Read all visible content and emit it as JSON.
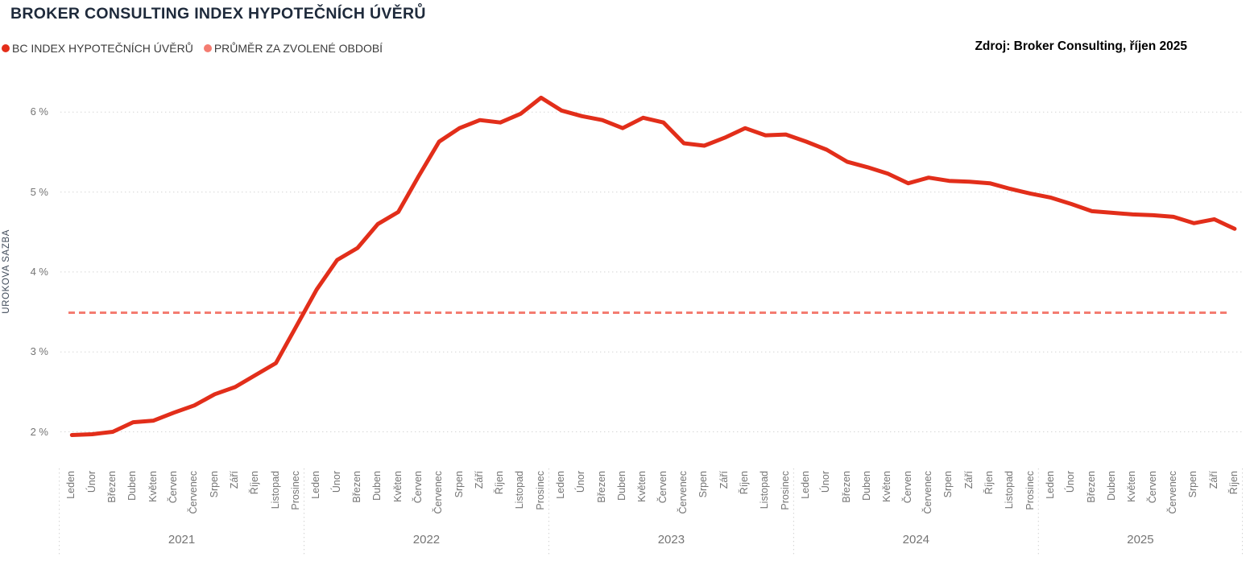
{
  "title": "BROKER CONSULTING INDEX HYPOTEČNÍCH ÚVĚRŮ",
  "source_note": "Zdroj: Broker Consulting, říjen 2025",
  "legend": [
    {
      "label": "BC INDEX HYPOTEČNÍCH ÚVĚRŮ",
      "color": "#e42e1a"
    },
    {
      "label": "PRŮMĚR ZA ZVOLENÉ OBDOBÍ",
      "color": "#f47c71"
    }
  ],
  "colors": {
    "series_line": "#e22e1a",
    "average_line": "#f47c71",
    "gridline": "#d4d4d4",
    "separator": "#cfcfcf",
    "axis_text": "#757575",
    "title_text": "#1e2a3b"
  },
  "chart_data": {
    "type": "line",
    "title": "BROKER CONSULTING INDEX HYPOTEČNÍCH ÚVĚRŮ",
    "ylabel": "UROKOVA SAZBA",
    "xlabel": "",
    "ylim": [
      1.6,
      6.4
    ],
    "grid": true,
    "legend_position": "top-left",
    "y_ticks": [
      {
        "value": 2,
        "label": "2 %"
      },
      {
        "value": 3,
        "label": "3 %"
      },
      {
        "value": 4,
        "label": "4 %"
      },
      {
        "value": 5,
        "label": "5 %"
      },
      {
        "value": 6,
        "label": "6 %"
      }
    ],
    "month_names": [
      "Leden",
      "Únor",
      "Březen",
      "Duben",
      "Květen",
      "Červen",
      "Červenec",
      "Srpen",
      "Září",
      "Říjen",
      "Listopad",
      "Prosinec"
    ],
    "years": [
      {
        "label": "2021",
        "month_count": 12
      },
      {
        "label": "2022",
        "month_count": 12
      },
      {
        "label": "2023",
        "month_count": 12
      },
      {
        "label": "2024",
        "month_count": 12
      },
      {
        "label": "2025",
        "month_count": 10
      }
    ],
    "series": [
      {
        "name": "BC INDEX HYPOTEČNÍCH ÚVĚRŮ",
        "unit": "%",
        "values": [
          1.96,
          1.97,
          2.0,
          2.12,
          2.14,
          2.24,
          2.33,
          2.47,
          2.56,
          2.71,
          2.86,
          3.32,
          3.78,
          4.15,
          4.3,
          4.6,
          4.75,
          5.2,
          5.63,
          5.8,
          5.9,
          5.87,
          5.98,
          6.18,
          6.02,
          5.95,
          5.9,
          5.8,
          5.93,
          5.87,
          5.61,
          5.58,
          5.68,
          5.8,
          5.71,
          5.72,
          5.63,
          5.53,
          5.38,
          5.31,
          5.23,
          5.11,
          5.18,
          5.14,
          5.13,
          5.11,
          5.04,
          4.98,
          4.93,
          4.85,
          4.76,
          4.74,
          4.72,
          4.71,
          4.69,
          4.61,
          4.66,
          4.54
        ]
      }
    ],
    "average_line": {
      "name": "PRŮMĚR ZA ZVOLENÉ OBDOBÍ",
      "value": 3.49,
      "style": "dashed"
    }
  }
}
